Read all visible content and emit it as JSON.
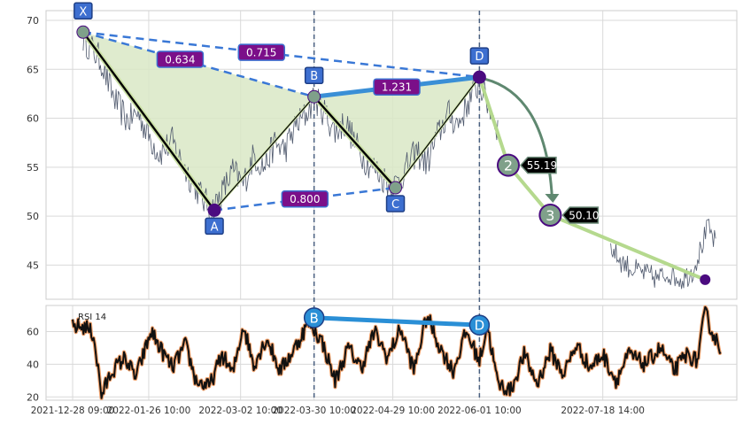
{
  "chart_data": {
    "type": "line",
    "colors": {
      "price": "#505a6e",
      "pattern_fill": "#d9e8c6",
      "leg": "#000000",
      "leg_glow": "#cde2a8",
      "dashed": "#3a78d6",
      "bc_line": "#3a8fd6",
      "ratio_box": "#7b0f89",
      "point_box": "#3d6fd0",
      "pivot_marker": "#4b0b80",
      "arc": "#5f8870",
      "projection": "#b5d98e",
      "rsi": "#111111",
      "rsi_glow": "#f0a06a",
      "rsi_trend": "#2a8fd6",
      "vline": "#4a6080",
      "grid": "#d9d9d9"
    },
    "price_panel": {
      "ylim": [
        41.5,
        71
      ],
      "yticks": [
        45,
        50,
        55,
        60,
        65,
        70
      ],
      "series_name": "price"
    },
    "rsi_panel": {
      "label": "RSI 14",
      "ylim": [
        18,
        76
      ],
      "yticks": [
        20,
        40,
        60
      ]
    },
    "x_axis": {
      "start": "2021-12-28",
      "end": "2022-09-02",
      "ticks": [
        {
          "date": "2021-12-28",
          "label": "2021-12-28 09:00"
        },
        {
          "date": "2022-01-26",
          "label": "2022-01-26 10:00"
        },
        {
          "date": "2022-03-02",
          "label": "2022-03-02 10:00"
        },
        {
          "date": "2022-03-30",
          "label": "2022-03-30 10:00"
        },
        {
          "date": "2022-04-29",
          "label": "2022-04-29 10:00"
        },
        {
          "date": "2022-06-01",
          "label": "2022-06-01 10:00"
        },
        {
          "date": "2022-07-18",
          "label": "2022-07-18 14:00"
        }
      ],
      "vlines": [
        "2022-03-30",
        "2022-06-01"
      ]
    },
    "price_anchors": [
      [
        "2022-01-01",
        68.2
      ],
      [
        "2022-01-04",
        67.2
      ],
      [
        "2022-01-08",
        65.8
      ],
      [
        "2022-01-11",
        63.2
      ],
      [
        "2022-01-14",
        61.4
      ],
      [
        "2022-01-18",
        59.7
      ],
      [
        "2022-01-22",
        60.6
      ],
      [
        "2022-01-26",
        58.2
      ],
      [
        "2022-01-30",
        56.4
      ],
      [
        "2022-02-04",
        57.6
      ],
      [
        "2022-02-08",
        55.2
      ],
      [
        "2022-02-12",
        53.4
      ],
      [
        "2022-02-16",
        51.6
      ],
      [
        "2022-02-19",
        50.6
      ],
      [
        "2022-02-23",
        52.4
      ],
      [
        "2022-02-27",
        54.6
      ],
      [
        "2022-03-03",
        53.2
      ],
      [
        "2022-03-07",
        56.2
      ],
      [
        "2022-03-11",
        55.0
      ],
      [
        "2022-03-15",
        57.4
      ],
      [
        "2022-03-19",
        56.8
      ],
      [
        "2022-03-23",
        59.2
      ],
      [
        "2022-03-27",
        60.4
      ],
      [
        "2022-03-30",
        62.1
      ],
      [
        "2022-04-03",
        60.6
      ],
      [
        "2022-04-07",
        58.6
      ],
      [
        "2022-04-11",
        59.6
      ],
      [
        "2022-04-15",
        57.2
      ],
      [
        "2022-04-19",
        55.6
      ],
      [
        "2022-04-23",
        54.6
      ],
      [
        "2022-04-27",
        53.4
      ],
      [
        "2022-04-30",
        53.2
      ],
      [
        "2022-05-04",
        54.8
      ],
      [
        "2022-05-08",
        56.6
      ],
      [
        "2022-05-12",
        55.4
      ],
      [
        "2022-05-16",
        58.2
      ],
      [
        "2022-05-20",
        60.4
      ],
      [
        "2022-05-24",
        59.4
      ],
      [
        "2022-05-28",
        61.8
      ],
      [
        "2022-06-01",
        63.6
      ],
      [
        "2022-06-04",
        61.6
      ],
      [
        "2022-06-08",
        59.0
      ]
    ],
    "price_tail": [
      [
        "2022-07-21",
        46.8
      ],
      [
        "2022-07-25",
        45.4
      ],
      [
        "2022-07-29",
        44.6
      ],
      [
        "2022-08-03",
        44.1
      ],
      [
        "2022-08-08",
        43.6
      ],
      [
        "2022-08-12",
        44.2
      ],
      [
        "2022-08-17",
        43.5
      ],
      [
        "2022-08-21",
        44.3
      ],
      [
        "2022-08-24",
        46.4
      ],
      [
        "2022-08-27",
        48.8
      ],
      [
        "2022-08-30",
        47.2
      ]
    ],
    "pattern_points": [
      {
        "label": "X",
        "date": "2022-01-01",
        "value": 68.8,
        "tag": "above",
        "marker": "#7fa08a"
      },
      {
        "label": "A",
        "date": "2022-02-20",
        "value": 50.6,
        "tag": "below",
        "marker": "#4b0b80"
      },
      {
        "label": "B",
        "date": "2022-03-30",
        "value": 62.2,
        "tag": "above",
        "marker": "#7fa08a"
      },
      {
        "label": "C",
        "date": "2022-04-30",
        "value": 52.9,
        "tag": "below",
        "marker": "#7fa08a"
      },
      {
        "label": "D",
        "date": "2022-06-01",
        "value": 64.2,
        "tag": "above",
        "marker": "#4b0b80"
      }
    ],
    "ratios": [
      {
        "text": "0.634",
        "from": "X",
        "to": "B",
        "pos": 0.42
      },
      {
        "text": "0.715",
        "from": "X",
        "to": "D",
        "pos": 0.45
      },
      {
        "text": "0.800",
        "from": "A",
        "to": "C",
        "pos": 0.5
      },
      {
        "text": "1.231",
        "from": "B",
        "to": "D",
        "pos": 0.5
      }
    ],
    "targets": [
      {
        "label": "2",
        "date": "2022-06-12",
        "value": 55.2,
        "text": "55.19"
      },
      {
        "label": "3",
        "date": "2022-06-28",
        "value": 50.1,
        "text": "50.10"
      }
    ],
    "end_marker": {
      "date": "2022-08-26",
      "value": 43.5
    },
    "rsi_anchors": [
      [
        "2021-12-28",
        63
      ],
      [
        "2022-01-02",
        63
      ],
      [
        "2022-01-05",
        58
      ],
      [
        "2022-01-08",
        21
      ],
      [
        "2022-01-12",
        36
      ],
      [
        "2022-01-17",
        44
      ],
      [
        "2022-01-21",
        32
      ],
      [
        "2022-01-27",
        60
      ],
      [
        "2022-01-31",
        48
      ],
      [
        "2022-02-04",
        38
      ],
      [
        "2022-02-09",
        52
      ],
      [
        "2022-02-13",
        30
      ],
      [
        "2022-02-18",
        26
      ],
      [
        "2022-02-23",
        46
      ],
      [
        "2022-02-27",
        34
      ],
      [
        "2022-03-03",
        64
      ],
      [
        "2022-03-07",
        40
      ],
      [
        "2022-03-12",
        56
      ],
      [
        "2022-03-17",
        36
      ],
      [
        "2022-03-22",
        48
      ],
      [
        "2022-03-28",
        66
      ],
      [
        "2022-04-02",
        54
      ],
      [
        "2022-04-07",
        30
      ],
      [
        "2022-04-12",
        50
      ],
      [
        "2022-04-17",
        38
      ],
      [
        "2022-04-22",
        60
      ],
      [
        "2022-04-27",
        44
      ],
      [
        "2022-05-02",
        62
      ],
      [
        "2022-05-07",
        36
      ],
      [
        "2022-05-12",
        70
      ],
      [
        "2022-05-17",
        50
      ],
      [
        "2022-05-22",
        36
      ],
      [
        "2022-05-27",
        60
      ],
      [
        "2022-06-01",
        42
      ],
      [
        "2022-06-04",
        64
      ],
      [
        "2022-06-08",
        28
      ],
      [
        "2022-06-13",
        24
      ],
      [
        "2022-06-18",
        46
      ],
      [
        "2022-06-23",
        28
      ],
      [
        "2022-06-28",
        48
      ],
      [
        "2022-07-03",
        34
      ],
      [
        "2022-07-08",
        52
      ],
      [
        "2022-07-13",
        38
      ],
      [
        "2022-07-18",
        46
      ],
      [
        "2022-07-23",
        30
      ],
      [
        "2022-07-28",
        46
      ],
      [
        "2022-08-03",
        40
      ],
      [
        "2022-08-09",
        50
      ],
      [
        "2022-08-14",
        36
      ],
      [
        "2022-08-19",
        46
      ],
      [
        "2022-08-23",
        42
      ],
      [
        "2022-08-26",
        72
      ],
      [
        "2022-08-29",
        58
      ],
      [
        "2022-09-01",
        50
      ]
    ],
    "rsi_trend": {
      "from": {
        "label": "B",
        "date": "2022-03-30",
        "value": 68.5
      },
      "to": {
        "label": "D",
        "date": "2022-06-01",
        "value": 64.0
      }
    }
  }
}
